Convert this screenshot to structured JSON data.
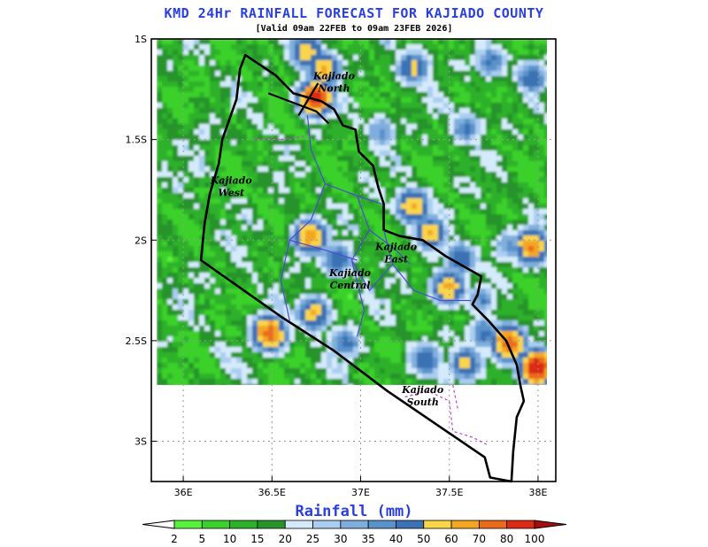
{
  "header": {
    "title": "KMD 24Hr RAINFALL FORECAST FOR KAJIADO COUNTY",
    "subtitle": "[Valid 09am 22FEB to 09am 23FEB 2026]"
  },
  "map": {
    "lon_ticks": [
      {
        "label": "36E",
        "value": 36.0
      },
      {
        "label": "36.5E",
        "value": 36.5
      },
      {
        "label": "37E",
        "value": 37.0
      },
      {
        "label": "37.5E",
        "value": 37.5
      },
      {
        "label": "38E",
        "value": 38.0
      }
    ],
    "lat_ticks": [
      {
        "label": "1S",
        "value": -1.0
      },
      {
        "label": "1.5S",
        "value": -1.5
      },
      {
        "label": "2S",
        "value": -2.0
      },
      {
        "label": "2.5S",
        "value": -2.5
      },
      {
        "label": "3S",
        "value": -3.0
      }
    ],
    "lon_range": [
      35.82,
      38.1
    ],
    "lat_range": [
      -3.2,
      -1.0
    ],
    "data_extent": {
      "lon": [
        35.85,
        38.05
      ],
      "lat": [
        -2.72,
        -1.0
      ]
    },
    "sub_counties": [
      {
        "name": "Kajiado\nNorth",
        "lon": 36.85,
        "lat": -1.2
      },
      {
        "name": "Kajiado\nWest",
        "lon": 36.27,
        "lat": -1.72
      },
      {
        "name": "Kajiado\nEast",
        "lon": 37.2,
        "lat": -2.05
      },
      {
        "name": "Kajiado\nCentral",
        "lon": 36.94,
        "lat": -2.18
      },
      {
        "name": "Kajiado\nSouth",
        "lon": 37.35,
        "lat": -2.76
      }
    ],
    "rain_hotspots": [
      {
        "lon": 36.73,
        "lat": -1.28,
        "mm": 85
      },
      {
        "lon": 36.78,
        "lat": -1.14,
        "mm": 60
      },
      {
        "lon": 36.68,
        "lat": -1.05,
        "mm": 55
      },
      {
        "lon": 37.28,
        "lat": -1.13,
        "mm": 50
      },
      {
        "lon": 37.95,
        "lat": -1.18,
        "mm": 45
      },
      {
        "lon": 37.72,
        "lat": -1.1,
        "mm": 40
      },
      {
        "lon": 37.1,
        "lat": -1.45,
        "mm": 35
      },
      {
        "lon": 37.58,
        "lat": -1.43,
        "mm": 40
      },
      {
        "lon": 37.28,
        "lat": -1.82,
        "mm": 60
      },
      {
        "lon": 37.38,
        "lat": -1.95,
        "mm": 55
      },
      {
        "lon": 37.55,
        "lat": -2.08,
        "mm": 45
      },
      {
        "lon": 37.82,
        "lat": -2.02,
        "mm": 35
      },
      {
        "lon": 36.7,
        "lat": -1.97,
        "mm": 65
      },
      {
        "lon": 36.85,
        "lat": -2.08,
        "mm": 45
      },
      {
        "lon": 37.48,
        "lat": -2.22,
        "mm": 60
      },
      {
        "lon": 37.67,
        "lat": -2.28,
        "mm": 35
      },
      {
        "lon": 37.95,
        "lat": -2.02,
        "mm": 70
      },
      {
        "lon": 36.47,
        "lat": -2.45,
        "mm": 75
      },
      {
        "lon": 36.72,
        "lat": -2.35,
        "mm": 55
      },
      {
        "lon": 36.9,
        "lat": -2.5,
        "mm": 40
      },
      {
        "lon": 37.82,
        "lat": -2.5,
        "mm": 75
      },
      {
        "lon": 37.98,
        "lat": -2.62,
        "mm": 90
      },
      {
        "lon": 37.58,
        "lat": -2.6,
        "mm": 50
      },
      {
        "lon": 37.35,
        "lat": -2.58,
        "mm": 45
      },
      {
        "lon": 37.68,
        "lat": -2.45,
        "mm": 40
      },
      {
        "lon": 36.1,
        "lat": -1.45,
        "mm": 20
      },
      {
        "lon": 36.3,
        "lat": -2.15,
        "mm": 15
      }
    ]
  },
  "colorbar": {
    "title": "Rainfall (mm)",
    "labels": [
      "2",
      "5",
      "10",
      "15",
      "20",
      "25",
      "30",
      "35",
      "40",
      "50",
      "60",
      "70",
      "80",
      "100"
    ],
    "colors": [
      "#ffffff",
      "#57f23a",
      "#3bd12c",
      "#2db12a",
      "#269429",
      "#d4ebfb",
      "#aacdf0",
      "#80aedc",
      "#5a92cb",
      "#3b72b3",
      "#f9d648",
      "#f4a623",
      "#eb6b1c",
      "#dc2a15",
      "#a80c0c"
    ]
  }
}
